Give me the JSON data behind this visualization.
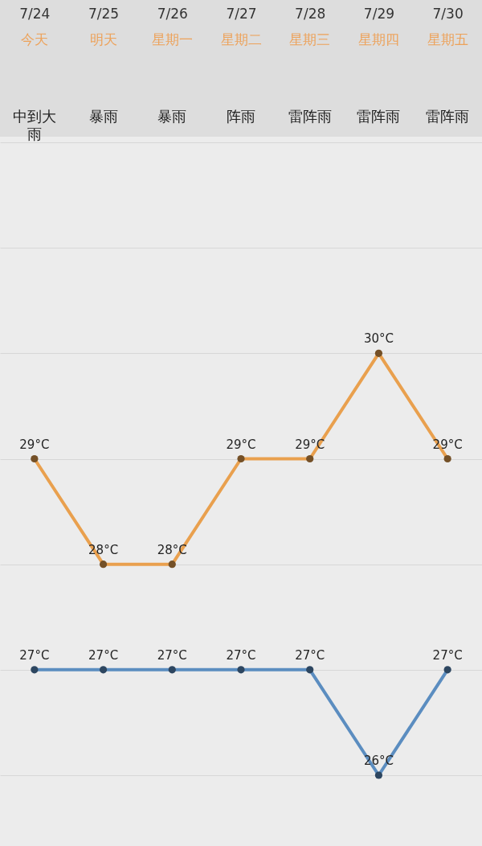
{
  "chart_data": {
    "type": "line",
    "categories": [
      "7/24",
      "7/25",
      "7/26",
      "7/27",
      "7/28",
      "7/29",
      "7/30"
    ],
    "annotations": [
      "今天",
      "明天",
      "星期一",
      "星期二",
      "星期三",
      "星期四",
      "星期五",
      "中到大雨",
      "暴雨",
      "暴雨",
      "阵雨",
      "雷阵雨",
      "雷阵雨",
      "雷阵雨"
    ],
    "series": [
      {
        "color": "#e9a04e",
        "values": [
          29,
          28,
          28,
          29,
          29,
          30,
          29
        ],
        "value_labels": [
          "29°C",
          "28°C",
          "28°C",
          "29°C",
          "29°C",
          "30°C",
          "29°C"
        ]
      },
      {
        "color": "#5b8dc0",
        "values": [
          27,
          27,
          27,
          27,
          27,
          26,
          27
        ],
        "value_labels": [
          "27°C",
          "27°C",
          "27°C",
          "27°C",
          "27°C",
          "26°C",
          "27°C"
        ]
      }
    ],
    "ylim": [
      26,
      32
    ],
    "yticks": [
      {
        "value": 26,
        "label": null
      },
      {
        "value": 27,
        "label": null
      },
      {
        "value": 28,
        "label": null
      },
      {
        "value": 29,
        "label": null
      },
      {
        "value": 30,
        "label": null
      },
      {
        "value": 31,
        "label": null
      },
      {
        "value": 32,
        "label": null
      }
    ],
    "grid": "y",
    "tick_labels": "x",
    "marker": "circle",
    "line_style": "solid"
  }
}
